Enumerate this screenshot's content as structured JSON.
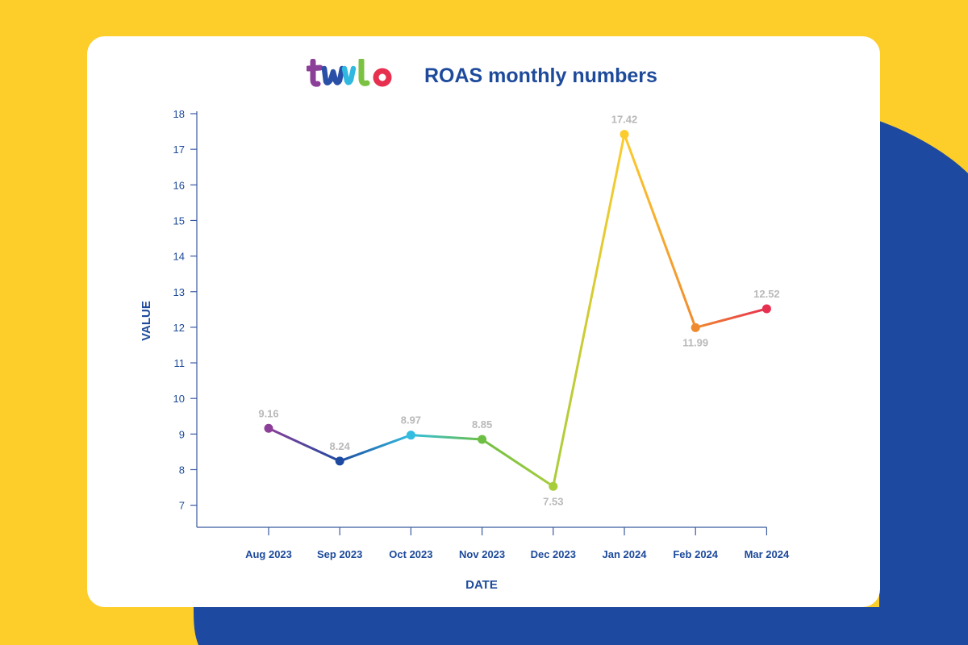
{
  "brand": {
    "logo_text": "twilo",
    "logo_colors": [
      "#8b3f98",
      "#2a4fa6",
      "#31b8e0",
      "#7cc242",
      "#e7304f"
    ]
  },
  "colors": {
    "background_yellow": "#fdcd2a",
    "background_blue": "#1d4aa0",
    "card": "#ffffff",
    "text_dark": "#1d4a9b",
    "label_gray": "#b9b9b9",
    "axis": "#3a5aa0"
  },
  "chart_data": {
    "type": "line",
    "title": "ROAS monthly numbers",
    "xlabel": "DATE",
    "ylabel": "VALUE",
    "ylim": [
      6.5,
      18
    ],
    "yticks": [
      7,
      8,
      9,
      10,
      11,
      12,
      13,
      14,
      15,
      16,
      17,
      18
    ],
    "categories": [
      "Aug 2023",
      "Sep 2023",
      "Oct 2023",
      "Nov 2023",
      "Dec 2023",
      "Jan 2024",
      "Feb 2024",
      "Mar 2024"
    ],
    "series": [
      {
        "values": [
          9.16,
          8.24,
          8.97,
          8.85,
          7.53,
          17.42,
          11.99,
          12.52
        ],
        "point_colors": [
          "#8b3f98",
          "#1d4aa0",
          "#33bde0",
          "#6dbf44",
          "#a8cd3a",
          "#fccb2d",
          "#f08a2e",
          "#e7304f"
        ]
      }
    ],
    "data_labels": [
      "9.16",
      "8.24",
      "8.97",
      "8.85",
      "7.53",
      "17.42",
      "11.99",
      "12.52"
    ],
    "data_label_position": [
      "above",
      "above",
      "above",
      "above",
      "below",
      "above",
      "below",
      "above"
    ],
    "grid": false,
    "legend": "none"
  }
}
